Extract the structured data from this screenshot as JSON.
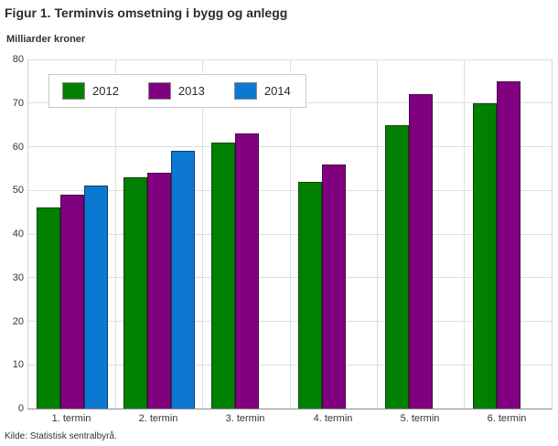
{
  "title": "Figur 1. Terminvis omsetning i bygg og anlegg",
  "subtitle": "Milliarder kroner",
  "source": "Kilde: Statistisk sentralbyrå.",
  "colors": {
    "series_2012": "#008000",
    "series_2013": "#800080",
    "series_2014": "#0d78d2",
    "gridline": "#dedede",
    "axis_line": "#8c8c8c",
    "text": "#333333"
  },
  "chart_data": {
    "type": "bar",
    "title": "Figur 1. Terminvis omsetning i bygg og anlegg",
    "ylabel": "Milliarder kroner",
    "xlabel": "",
    "categories": [
      "1. termin",
      "2. termin",
      "3. termin",
      "4. termin",
      "5. termin",
      "6. termin"
    ],
    "series": [
      {
        "name": "2012",
        "color": "#008000",
        "values": [
          46,
          53,
          61,
          52,
          65,
          70
        ]
      },
      {
        "name": "2013",
        "color": "#800080",
        "values": [
          49,
          54,
          63,
          56,
          72,
          75
        ]
      },
      {
        "name": "2014",
        "color": "#0d78d2",
        "values": [
          51,
          59,
          null,
          null,
          null,
          null
        ]
      }
    ],
    "ylim": [
      0,
      80
    ],
    "yticks": [
      0,
      10,
      20,
      30,
      40,
      50,
      60,
      70,
      80
    ],
    "grid": true,
    "legend_position": "top-left-inside"
  }
}
